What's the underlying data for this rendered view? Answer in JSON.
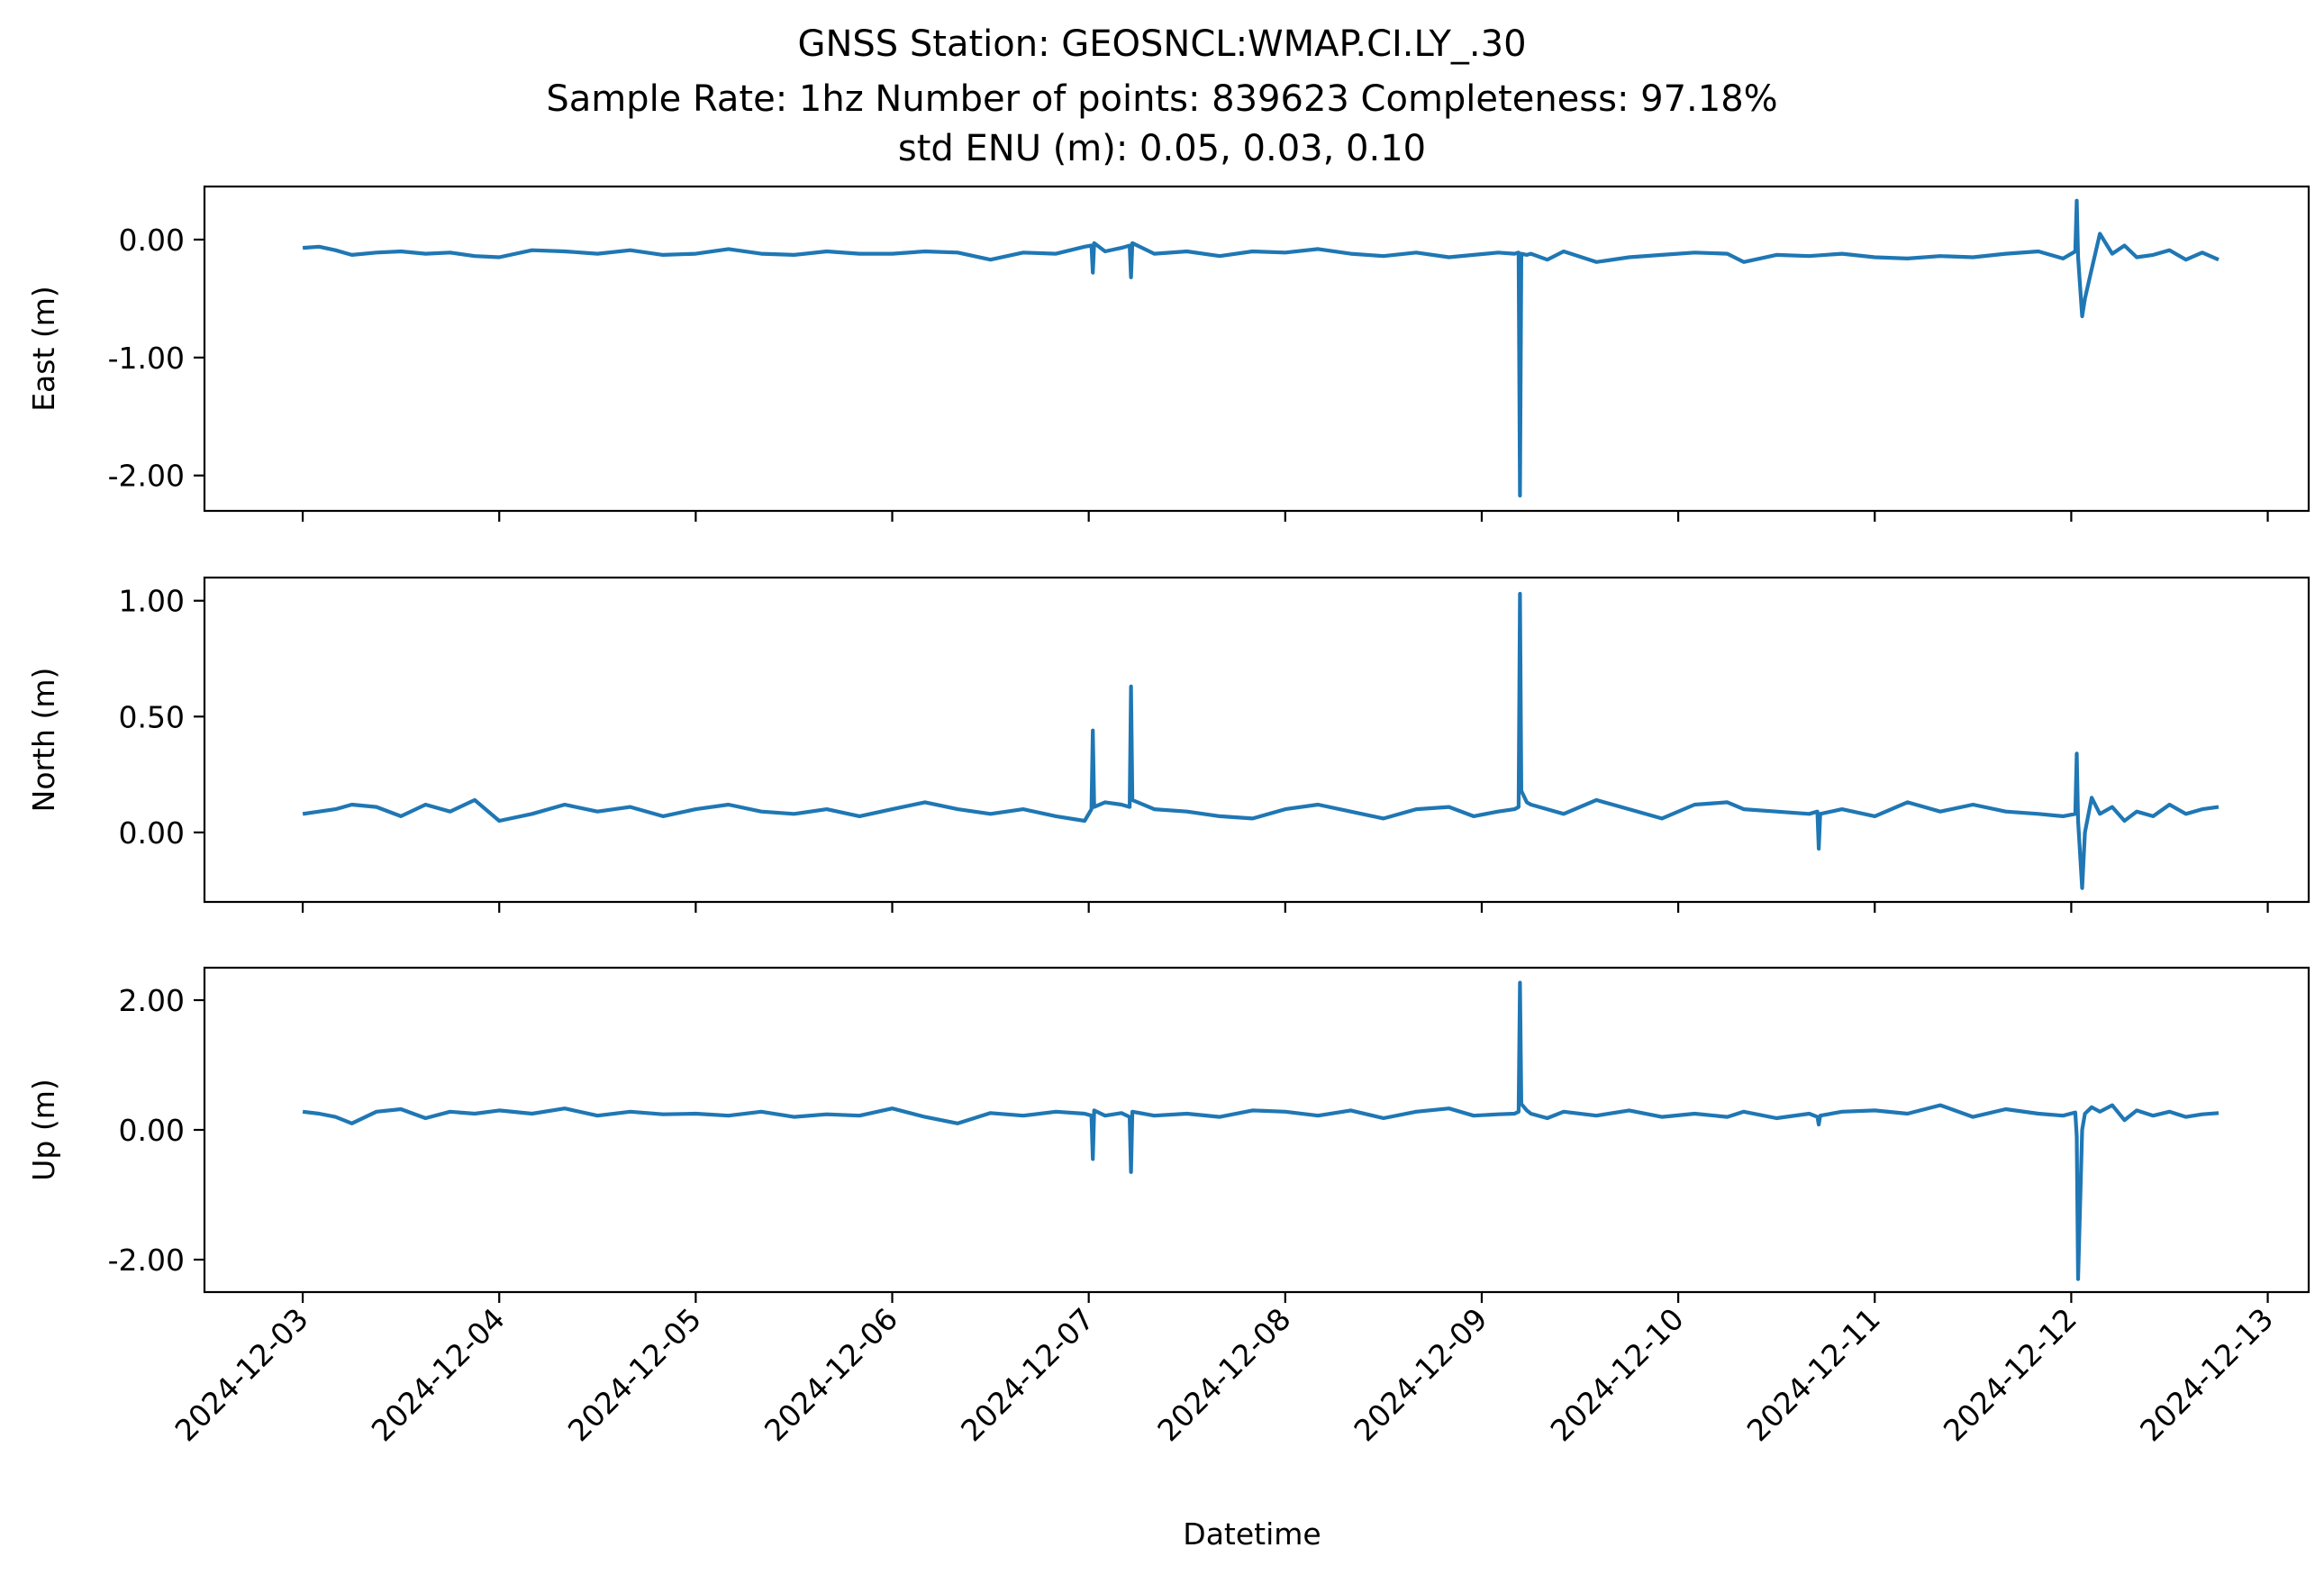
{
  "chart_data": {
    "type": "line",
    "title_lines": [
      "GNSS Station: GEOSNCL:WMAP.CI.LY_.30",
      "Sample Rate: 1hz   Number of points: 839623    Completeness:  97.18%",
      "std ENU (m):  0.05, 0.03, 0.10"
    ],
    "xlabel": "Datetime",
    "x_ticks": [
      "2024-12-03",
      "2024-12-04",
      "2024-12-05",
      "2024-12-06",
      "2024-12-07",
      "2024-12-08",
      "2024-12-09",
      "2024-12-10",
      "2024-12-11",
      "2024-12-12",
      "2024-12-13"
    ],
    "x_range": [
      "2024-12-02T12:00",
      "2024-12-13T05:00"
    ],
    "line_color": "#1f77b4",
    "grid": false,
    "panels": [
      {
        "ylabel": "East (m)",
        "ylim": [
          -2.3,
          0.45
        ],
        "y_ticks": [
          0.0,
          -1.0,
          -2.0
        ],
        "y_tick_labels": [
          "0.00",
          "-1.00",
          "-2.00"
        ],
        "series": {
          "x": [
            "2024-12-03T00:00",
            "2024-12-03T02:00",
            "2024-12-03T04:00",
            "2024-12-03T06:00",
            "2024-12-03T09:00",
            "2024-12-03T12:00",
            "2024-12-03T15:00",
            "2024-12-03T18:00",
            "2024-12-03T21:00",
            "2024-12-04T00:00",
            "2024-12-04T04:00",
            "2024-12-04T08:00",
            "2024-12-04T12:00",
            "2024-12-04T16:00",
            "2024-12-04T20:00",
            "2024-12-05T00:00",
            "2024-12-05T04:00",
            "2024-12-05T08:00",
            "2024-12-05T12:00",
            "2024-12-05T16:00",
            "2024-12-05T20:00",
            "2024-12-06T00:00",
            "2024-12-06T04:00",
            "2024-12-06T08:00",
            "2024-12-06T12:00",
            "2024-12-06T16:00",
            "2024-12-06T20:00",
            "2024-12-06T23:30",
            "2024-12-07T00:20",
            "2024-12-07T00:30",
            "2024-12-07T00:40",
            "2024-12-07T02:00",
            "2024-12-07T04:00",
            "2024-12-07T05:00",
            "2024-12-07T05:10",
            "2024-12-07T05:20",
            "2024-12-07T08:00",
            "2024-12-07T12:00",
            "2024-12-07T16:00",
            "2024-12-07T20:00",
            "2024-12-08T00:00",
            "2024-12-08T04:00",
            "2024-12-08T08:00",
            "2024-12-08T12:00",
            "2024-12-08T16:00",
            "2024-12-08T20:00",
            "2024-12-08T23:00",
            "2024-12-09T02:00",
            "2024-12-09T04:00",
            "2024-12-09T04:30",
            "2024-12-09T04:40",
            "2024-12-09T04:50",
            "2024-12-09T05:30",
            "2024-12-09T06:00",
            "2024-12-09T08:00",
            "2024-12-09T10:00",
            "2024-12-09T14:00",
            "2024-12-09T18:00",
            "2024-12-09T22:00",
            "2024-12-10T02:00",
            "2024-12-10T06:00",
            "2024-12-10T08:00",
            "2024-12-10T12:00",
            "2024-12-10T16:00",
            "2024-12-10T20:00",
            "2024-12-11T00:00",
            "2024-12-11T04:00",
            "2024-12-11T08:00",
            "2024-12-11T12:00",
            "2024-12-11T16:00",
            "2024-12-11T20:00",
            "2024-12-11T23:00",
            "2024-12-12T00:30",
            "2024-12-12T00:40",
            "2024-12-12T00:50",
            "2024-12-12T01:20",
            "2024-12-12T01:40",
            "2024-12-12T02:30",
            "2024-12-12T03:30",
            "2024-12-12T05:00",
            "2024-12-12T06:30",
            "2024-12-12T08:00",
            "2024-12-12T10:00",
            "2024-12-12T12:00",
            "2024-12-12T14:00",
            "2024-12-12T16:00",
            "2024-12-12T18:00"
          ],
          "y": [
            -0.07,
            -0.06,
            -0.09,
            -0.13,
            -0.11,
            -0.1,
            -0.12,
            -0.11,
            -0.14,
            -0.15,
            -0.09,
            -0.1,
            -0.12,
            -0.09,
            -0.13,
            -0.12,
            -0.08,
            -0.12,
            -0.13,
            -0.1,
            -0.12,
            -0.12,
            -0.1,
            -0.11,
            -0.17,
            -0.11,
            -0.12,
            -0.06,
            -0.05,
            -0.28,
            -0.03,
            -0.1,
            -0.07,
            -0.05,
            -0.32,
            -0.03,
            -0.12,
            -0.1,
            -0.14,
            -0.1,
            -0.11,
            -0.08,
            -0.12,
            -0.14,
            -0.11,
            -0.15,
            -0.13,
            -0.11,
            -0.12,
            -0.11,
            -2.17,
            -0.12,
            -0.13,
            -0.12,
            -0.17,
            -0.1,
            -0.19,
            -0.15,
            -0.13,
            -0.11,
            -0.12,
            -0.19,
            -0.13,
            -0.14,
            -0.12,
            -0.15,
            -0.16,
            -0.14,
            -0.15,
            -0.12,
            -0.1,
            -0.16,
            -0.1,
            0.33,
            -0.15,
            -0.65,
            -0.5,
            -0.25,
            0.05,
            -0.12,
            -0.05,
            -0.15,
            -0.13,
            -0.09,
            -0.17,
            -0.11,
            -0.17
          ]
        }
      },
      {
        "ylabel": "North (m)",
        "ylim": [
          -0.3,
          1.1
        ],
        "y_ticks": [
          1.0,
          0.5,
          0.0
        ],
        "y_tick_labels": [
          "1.00",
          "0.50",
          "0.00"
        ],
        "series": {
          "x": [
            "2024-12-03T00:00",
            "2024-12-03T02:00",
            "2024-12-03T04:00",
            "2024-12-03T06:00",
            "2024-12-03T09:00",
            "2024-12-03T12:00",
            "2024-12-03T15:00",
            "2024-12-03T18:00",
            "2024-12-03T21:00",
            "2024-12-04T00:00",
            "2024-12-04T04:00",
            "2024-12-04T08:00",
            "2024-12-04T12:00",
            "2024-12-04T16:00",
            "2024-12-04T20:00",
            "2024-12-05T00:00",
            "2024-12-05T04:00",
            "2024-12-05T08:00",
            "2024-12-05T12:00",
            "2024-12-05T16:00",
            "2024-12-05T20:00",
            "2024-12-06T00:00",
            "2024-12-06T04:00",
            "2024-12-06T08:00",
            "2024-12-06T12:00",
            "2024-12-06T16:00",
            "2024-12-06T20:00",
            "2024-12-06T23:30",
            "2024-12-07T00:20",
            "2024-12-07T00:30",
            "2024-12-07T00:40",
            "2024-12-07T02:00",
            "2024-12-07T04:00",
            "2024-12-07T05:00",
            "2024-12-07T05:10",
            "2024-12-07T05:20",
            "2024-12-07T08:00",
            "2024-12-07T12:00",
            "2024-12-07T16:00",
            "2024-12-07T20:00",
            "2024-12-08T00:00",
            "2024-12-08T04:00",
            "2024-12-08T08:00",
            "2024-12-08T12:00",
            "2024-12-08T16:00",
            "2024-12-08T20:00",
            "2024-12-08T23:00",
            "2024-12-09T02:00",
            "2024-12-09T04:00",
            "2024-12-09T04:30",
            "2024-12-09T04:40",
            "2024-12-09T04:50",
            "2024-12-09T05:30",
            "2024-12-09T06:00",
            "2024-12-09T08:00",
            "2024-12-09T10:00",
            "2024-12-09T14:00",
            "2024-12-09T18:00",
            "2024-12-09T22:00",
            "2024-12-10T02:00",
            "2024-12-10T06:00",
            "2024-12-10T08:00",
            "2024-12-10T12:00",
            "2024-12-10T16:00",
            "2024-12-10T17:00",
            "2024-12-10T17:10",
            "2024-12-10T17:20",
            "2024-12-10T20:00",
            "2024-12-11T00:00",
            "2024-12-11T04:00",
            "2024-12-11T08:00",
            "2024-12-11T12:00",
            "2024-12-11T16:00",
            "2024-12-11T20:00",
            "2024-12-11T23:00",
            "2024-12-12T00:30",
            "2024-12-12T00:40",
            "2024-12-12T00:50",
            "2024-12-12T01:20",
            "2024-12-12T01:40",
            "2024-12-12T02:30",
            "2024-12-12T03:30",
            "2024-12-12T05:00",
            "2024-12-12T06:30",
            "2024-12-12T08:00",
            "2024-12-12T10:00",
            "2024-12-12T12:00",
            "2024-12-12T14:00",
            "2024-12-12T16:00",
            "2024-12-12T18:00"
          ],
          "y": [
            0.08,
            0.09,
            0.1,
            0.12,
            0.11,
            0.07,
            0.12,
            0.09,
            0.14,
            0.05,
            0.08,
            0.12,
            0.09,
            0.11,
            0.07,
            0.1,
            0.12,
            0.09,
            0.08,
            0.1,
            0.07,
            0.1,
            0.13,
            0.1,
            0.08,
            0.1,
            0.07,
            0.05,
            0.1,
            0.44,
            0.11,
            0.13,
            0.12,
            0.11,
            0.63,
            0.14,
            0.1,
            0.09,
            0.07,
            0.06,
            0.1,
            0.12,
            0.09,
            0.06,
            0.1,
            0.11,
            0.07,
            0.09,
            0.1,
            0.11,
            1.03,
            0.18,
            0.13,
            0.12,
            0.1,
            0.08,
            0.14,
            0.1,
            0.06,
            0.12,
            0.13,
            0.1,
            0.09,
            0.08,
            0.09,
            -0.07,
            0.08,
            0.1,
            0.07,
            0.13,
            0.09,
            0.12,
            0.09,
            0.08,
            0.07,
            0.08,
            0.34,
            0.05,
            -0.24,
            0.0,
            0.15,
            0.08,
            0.11,
            0.05,
            0.09,
            0.07,
            0.12,
            0.08,
            0.1,
            0.11
          ]
        }
      },
      {
        "ylabel": "Up (m)",
        "ylim": [
          -2.5,
          2.5
        ],
        "y_ticks": [
          2.0,
          0.0,
          -2.0
        ],
        "y_tick_labels": [
          "2.00",
          "0.00",
          "-2.00"
        ],
        "series": {
          "x": [
            "2024-12-03T00:00",
            "2024-12-03T02:00",
            "2024-12-03T04:00",
            "2024-12-03T06:00",
            "2024-12-03T09:00",
            "2024-12-03T12:00",
            "2024-12-03T15:00",
            "2024-12-03T18:00",
            "2024-12-03T21:00",
            "2024-12-04T00:00",
            "2024-12-04T04:00",
            "2024-12-04T08:00",
            "2024-12-04T12:00",
            "2024-12-04T16:00",
            "2024-12-04T20:00",
            "2024-12-05T00:00",
            "2024-12-05T04:00",
            "2024-12-05T08:00",
            "2024-12-05T12:00",
            "2024-12-05T16:00",
            "2024-12-05T20:00",
            "2024-12-06T00:00",
            "2024-12-06T04:00",
            "2024-12-06T08:00",
            "2024-12-06T12:00",
            "2024-12-06T16:00",
            "2024-12-06T20:00",
            "2024-12-06T23:30",
            "2024-12-07T00:20",
            "2024-12-07T00:30",
            "2024-12-07T00:40",
            "2024-12-07T02:00",
            "2024-12-07T04:00",
            "2024-12-07T05:00",
            "2024-12-07T05:10",
            "2024-12-07T05:20",
            "2024-12-07T08:00",
            "2024-12-07T12:00",
            "2024-12-07T16:00",
            "2024-12-07T20:00",
            "2024-12-08T00:00",
            "2024-12-08T04:00",
            "2024-12-08T08:00",
            "2024-12-08T12:00",
            "2024-12-08T16:00",
            "2024-12-08T20:00",
            "2024-12-08T23:00",
            "2024-12-09T02:00",
            "2024-12-09T04:00",
            "2024-12-09T04:30",
            "2024-12-09T04:40",
            "2024-12-09T04:50",
            "2024-12-09T05:30",
            "2024-12-09T06:00",
            "2024-12-09T08:00",
            "2024-12-09T10:00",
            "2024-12-09T14:00",
            "2024-12-09T18:00",
            "2024-12-09T22:00",
            "2024-12-10T02:00",
            "2024-12-10T06:00",
            "2024-12-10T08:00",
            "2024-12-10T12:00",
            "2024-12-10T16:00",
            "2024-12-10T17:00",
            "2024-12-10T17:10",
            "2024-12-10T17:20",
            "2024-12-10T20:00",
            "2024-12-11T00:00",
            "2024-12-11T04:00",
            "2024-12-11T08:00",
            "2024-12-11T12:00",
            "2024-12-11T16:00",
            "2024-12-11T20:00",
            "2024-12-11T23:00",
            "2024-12-12T00:30",
            "2024-12-12T00:40",
            "2024-12-12T00:50",
            "2024-12-12T01:20",
            "2024-12-12T01:40",
            "2024-12-12T02:30",
            "2024-12-12T03:30",
            "2024-12-12T05:00",
            "2024-12-12T06:30",
            "2024-12-12T08:00",
            "2024-12-12T10:00",
            "2024-12-12T12:00",
            "2024-12-12T14:00",
            "2024-12-12T16:00",
            "2024-12-12T18:00"
          ],
          "y": [
            0.28,
            0.25,
            0.2,
            0.1,
            0.28,
            0.32,
            0.18,
            0.28,
            0.25,
            0.3,
            0.25,
            0.33,
            0.22,
            0.28,
            0.24,
            0.25,
            0.22,
            0.28,
            0.2,
            0.24,
            0.22,
            0.33,
            0.2,
            0.1,
            0.26,
            0.22,
            0.28,
            0.25,
            0.22,
            -0.45,
            0.3,
            0.22,
            0.26,
            0.2,
            -0.65,
            0.28,
            0.22,
            0.25,
            0.2,
            0.3,
            0.28,
            0.22,
            0.3,
            0.18,
            0.28,
            0.33,
            0.22,
            0.24,
            0.25,
            0.28,
            2.27,
            0.4,
            0.3,
            0.25,
            0.18,
            0.28,
            0.22,
            0.3,
            0.2,
            0.25,
            0.2,
            0.28,
            0.18,
            0.25,
            0.2,
            0.08,
            0.22,
            0.28,
            0.3,
            0.25,
            0.38,
            0.2,
            0.32,
            0.25,
            0.22,
            0.27,
            -0.1,
            -2.3,
            0.0,
            0.25,
            0.35,
            0.28,
            0.38,
            0.15,
            0.3,
            0.22,
            0.28,
            0.2,
            0.24,
            0.26
          ]
        }
      }
    ]
  }
}
